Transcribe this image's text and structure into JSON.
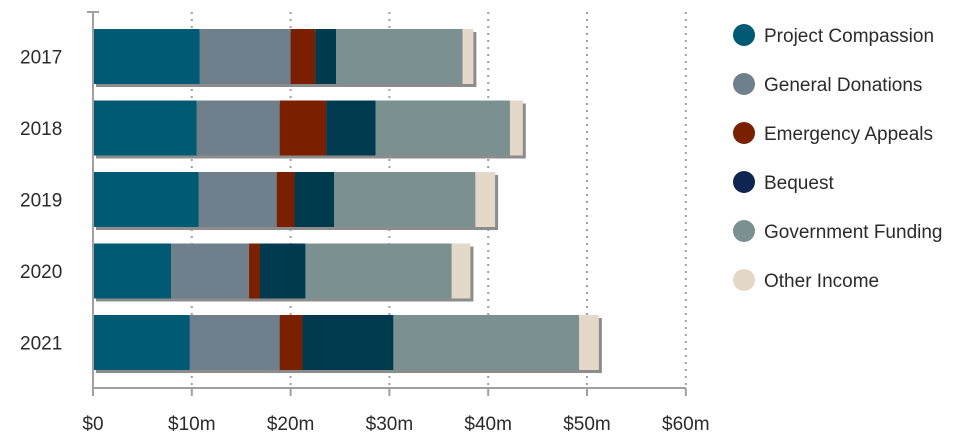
{
  "chart_data": {
    "type": "bar",
    "orientation": "horizontal",
    "stacked": true,
    "title": "",
    "xlabel": "",
    "ylabel": "",
    "categories": [
      "2017",
      "2018",
      "2019",
      "2020",
      "2021"
    ],
    "x_ticks": [
      "$0",
      "$10m",
      "$20m",
      "$30m",
      "$40m",
      "$50m",
      "$60m"
    ],
    "xlim": [
      0,
      60
    ],
    "grid": true,
    "legend_position": "right",
    "series": [
      {
        "name": "Project Compassion",
        "color": "#005a73",
        "values": [
          10.8,
          10.5,
          10.7,
          7.9,
          9.8
        ]
      },
      {
        "name": "General Donations",
        "color": "#6f7f8c",
        "values": [
          9.2,
          8.4,
          7.9,
          7.9,
          9.1
        ]
      },
      {
        "name": "Emergency Appeals",
        "color": "#7a2000",
        "values": [
          2.5,
          4.7,
          1.8,
          1.1,
          2.3
        ]
      },
      {
        "name": "Bequest",
        "color": "#003a4f",
        "values": [
          2.1,
          5.0,
          4.0,
          4.6,
          9.2
        ]
      },
      {
        "name": "Government Funding",
        "color": "#7b9090",
        "values": [
          12.8,
          13.6,
          14.3,
          14.8,
          18.8
        ]
      },
      {
        "name": "Other Income",
        "color": "#e4d9c8",
        "values": [
          1.1,
          1.3,
          2.0,
          1.9,
          2.0
        ]
      }
    ],
    "legend_dot_colors": {
      "Project Compassion": "#005a73",
      "General Donations": "#6f7f8c",
      "Emergency Appeals": "#7a2000",
      "Bequest": "#0d2550",
      "Government Funding": "#7b9090",
      "Other Income": "#e4d9c8"
    }
  }
}
